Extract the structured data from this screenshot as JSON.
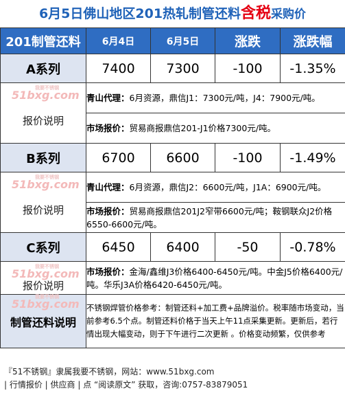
{
  "title": {
    "date_region": "6月5日佛山地区201热轧制管还料",
    "highlight": "含税",
    "suffix": "采购价"
  },
  "header": {
    "product": "201制管还料",
    "date1": "6月4日",
    "date2": "6月5日",
    "change": "涨跌",
    "change_pct": "涨跌幅"
  },
  "rows": [
    {
      "series": "A系列",
      "price1": "7400",
      "price2": "7300",
      "change": "-100",
      "change_pct": "-1.35%",
      "qs_label": "青山代理：",
      "qs_text": "6月资源，鼎信J1：7300元/吨，J4：7900元/吨。",
      "mk_label": "市场报价：",
      "mk_text": "贸易商报鼎信201-J1价格7300元/吨。"
    },
    {
      "series": "B系列",
      "price1": "6700",
      "price2": "6600",
      "change": "-100",
      "change_pct": "-1.49%",
      "qs_label": "青山代理：",
      "qs_text": "6月资源，鼎信J2：6600元/吨，J1A：6900元/吨。",
      "mk_label": "市场报价：",
      "mk_text": "贸易商报鼎信201J2窄带6600元/吨；鞍钢联众J2价格6550-6600元/吨。"
    },
    {
      "series": "C系列",
      "price1": "6450",
      "price2": "6400",
      "change": "-50",
      "change_pct": "-0.78%",
      "mk_label": "市场报价：",
      "mk_text": "金海/鑫维J3价格6400-6450元/吨。中金J5价格6400元/吨。华乐J3A价格6420-6450元/吨。"
    }
  ],
  "explain_label": "报价说明",
  "watermark": {
    "logo": "51bxg.com",
    "tag": "我要不锈钢"
  },
  "summary": {
    "label": "制管还料说明",
    "text": "不锈钢焊管价格参考：制管还料+加工费+品牌溢价。税率随市场变动，当前参考6.5个点。制管还料价格于当天上午11点采集更新。更新后，若行情出现大幅变动，则于下午进行二次更新 。价格变动频繁，仅供参考"
  },
  "footer": {
    "line1": "『51不锈钢』隶属我要不锈钢，网站：www.51bxg.com",
    "line2": "| 行情报价 | 供应商 | 点 “阅读原文” 获取，咨询:0757-83879051"
  },
  "colors": {
    "header_bg": "#2f6dc2",
    "label_bg": "#dde4f1",
    "title": "#1f62b8",
    "highlight": "#e50012"
  }
}
